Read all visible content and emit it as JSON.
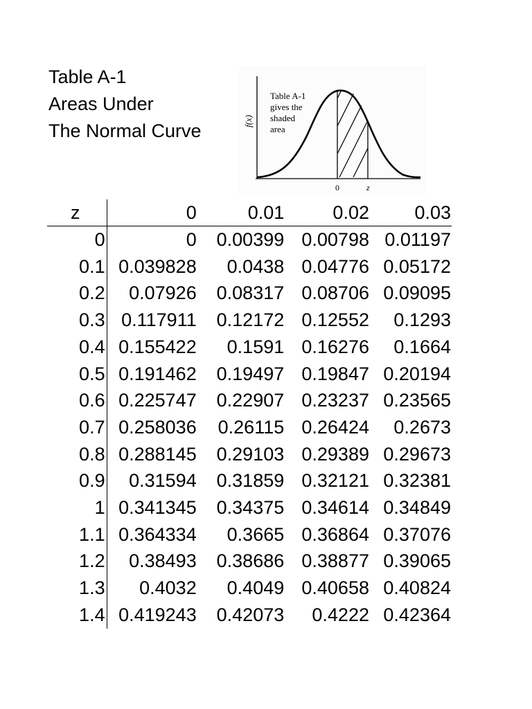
{
  "title": {
    "line1": "Table A-1",
    "line2": "Areas Under",
    "line3": "The Normal Curve"
  },
  "figure": {
    "note_lines": [
      "Table A-1",
      "gives the",
      "shaded",
      "area"
    ],
    "y_axis_label": "f(x)",
    "x_tick_zero": "0",
    "x_tick_z": "z"
  },
  "table": {
    "header": [
      "z",
      "0",
      "0.01",
      "0.02",
      "0.03"
    ],
    "rows": [
      [
        "0",
        "0",
        "0.00399",
        "0.00798",
        "0.01197"
      ],
      [
        "0.1",
        "0.039828",
        "0.0438",
        "0.04776",
        "0.05172"
      ],
      [
        "0.2",
        "0.07926",
        "0.08317",
        "0.08706",
        "0.09095"
      ],
      [
        "0.3",
        "0.117911",
        "0.12172",
        "0.12552",
        "0.1293"
      ],
      [
        "0.4",
        "0.155422",
        "0.1591",
        "0.16276",
        "0.1664"
      ],
      [
        "0.5",
        "0.191462",
        "0.19497",
        "0.19847",
        "0.20194"
      ],
      [
        "0.6",
        "0.225747",
        "0.22907",
        "0.23237",
        "0.23565"
      ],
      [
        "0.7",
        "0.258036",
        "0.26115",
        "0.26424",
        "0.2673"
      ],
      [
        "0.8",
        "0.288145",
        "0.29103",
        "0.29389",
        "0.29673"
      ],
      [
        "0.9",
        "0.31594",
        "0.31859",
        "0.32121",
        "0.32381"
      ],
      [
        "1",
        "0.341345",
        "0.34375",
        "0.34614",
        "0.34849"
      ],
      [
        "1.1",
        "0.364334",
        "0.3665",
        "0.36864",
        "0.37076"
      ],
      [
        "1.2",
        "0.38493",
        "0.38686",
        "0.38877",
        "0.39065"
      ],
      [
        "1.3",
        "0.4032",
        "0.4049",
        "0.40658",
        "0.40824"
      ],
      [
        "1.4",
        "0.419243",
        "0.42073",
        "0.4222",
        "0.42364"
      ]
    ]
  }
}
